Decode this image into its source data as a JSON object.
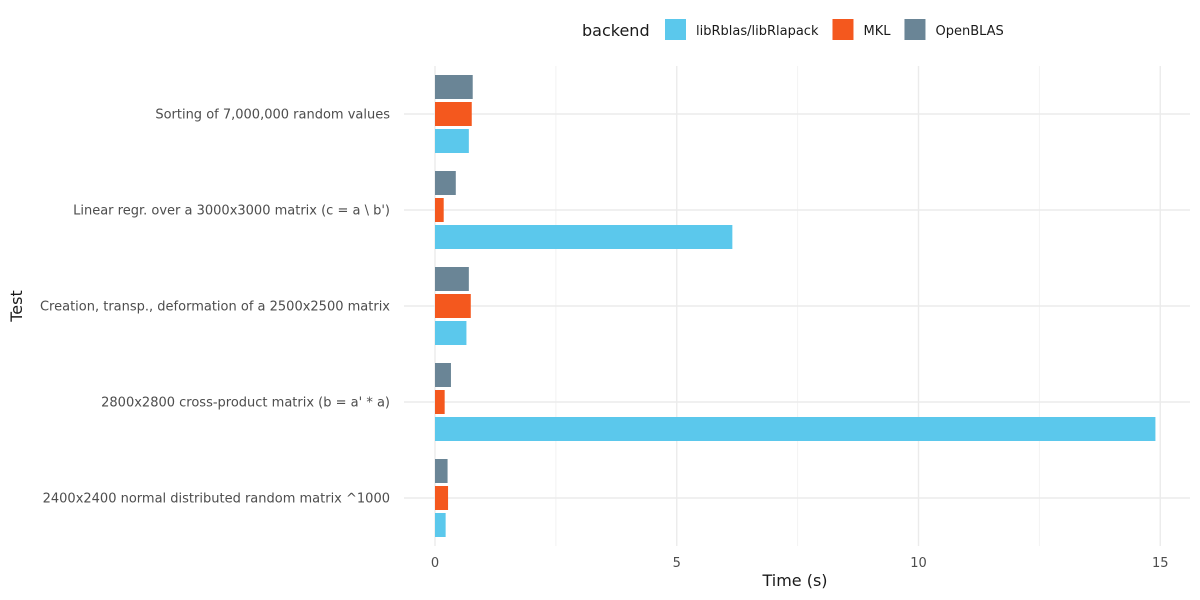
{
  "chart_data": {
    "type": "bar",
    "orientation": "horizontal",
    "xlabel": "Time (s)",
    "ylabel": "Test",
    "xlim": [
      0,
      15
    ],
    "x_ticks": [
      0,
      5,
      10,
      15
    ],
    "grid": true,
    "legend": {
      "title": "backend",
      "position": "top"
    },
    "categories": [
      "Sorting of 7,000,000 random values",
      "Linear regr. over a 3000x3000 matrix (c = a \\ b')",
      "Creation, transp., deformation of a 2500x2500 matrix",
      "2800x2800 cross-product matrix (b = a' * a)",
      "2400x2400 normal distributed random matrix ^1000"
    ],
    "series": [
      {
        "name": "libRblas/libRlapack",
        "color": "#5bc8ec",
        "values": [
          0.7,
          6.15,
          0.65,
          14.9,
          0.22
        ]
      },
      {
        "name": "MKL",
        "color": "#f4581e",
        "values": [
          0.76,
          0.18,
          0.74,
          0.2,
          0.27
        ]
      },
      {
        "name": "OpenBLAS",
        "color": "#6a8596",
        "values": [
          0.78,
          0.43,
          0.7,
          0.33,
          0.26
        ]
      }
    ]
  }
}
